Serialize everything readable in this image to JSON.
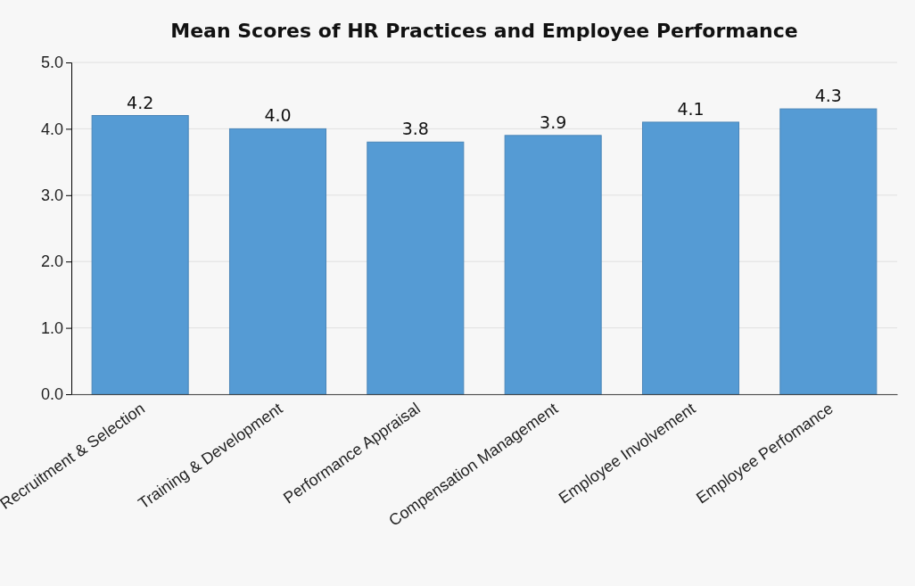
{
  "chart_data": {
    "type": "bar",
    "title": "Mean Scores of HR Practices and Employee Performance",
    "categories": [
      "Recruitment & Selection",
      "Training & Development",
      "Performance Appraisal",
      "Compensation Management",
      "Employee Involvement",
      "Employee Perfomance"
    ],
    "values": [
      4.2,
      4.0,
      3.8,
      3.9,
      4.1,
      4.3
    ],
    "value_labels": [
      "4.2",
      "4.0",
      "3.8",
      "3.9",
      "4.1",
      "4.3"
    ],
    "color": "#559bd4",
    "ylim": [
      0,
      5
    ],
    "yticks": [
      {
        "value": 0,
        "label": "0.0"
      },
      {
        "value": 1,
        "label": "1.0"
      },
      {
        "value": 2,
        "label": "2.0"
      },
      {
        "value": 3,
        "label": "3.0"
      },
      {
        "value": 4,
        "label": "4.0"
      },
      {
        "value": 5,
        "label": "5.0"
      }
    ],
    "grid": "y"
  }
}
